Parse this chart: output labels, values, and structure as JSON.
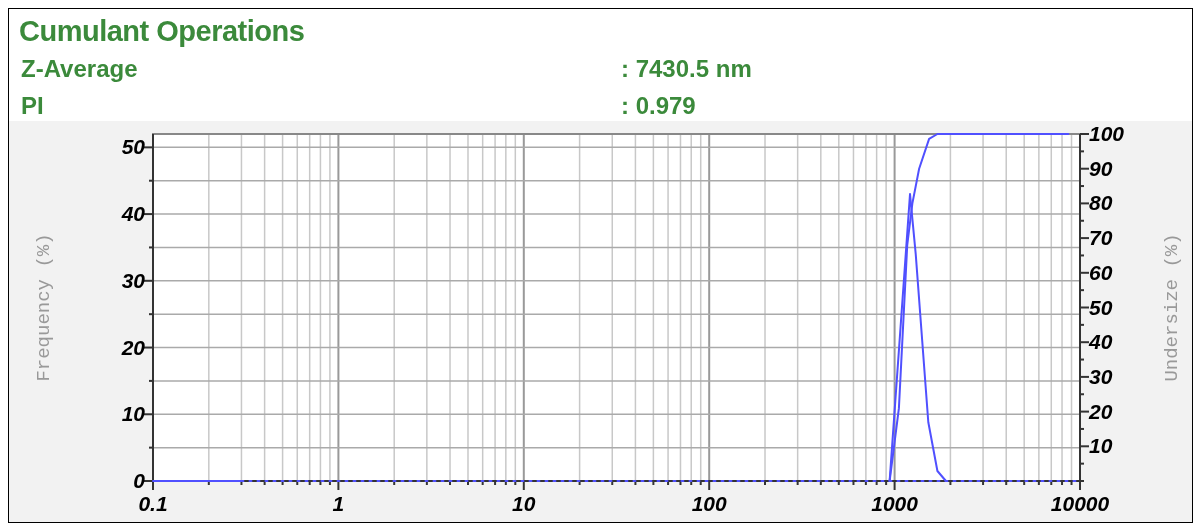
{
  "chart_data": {
    "type": "line",
    "title": "Cumulant Operations",
    "annotations": [
      "Z-Average",
      ": 7430.5 nm",
      "PI",
      ": 0.979"
    ],
    "ylabel": "Frequency (%)",
    "y2label": "Undersize (%)",
    "log": "x",
    "grid": true,
    "marker": "none",
    "xlim": [
      0.1,
      10000
    ],
    "xticks": [
      0.1,
      {
        "value": 0.2,
        "label": null
      },
      {
        "value": 0.3,
        "label": null
      },
      {
        "value": 0.4,
        "label": null
      },
      {
        "value": 0.5,
        "label": null
      },
      {
        "value": 0.6,
        "label": null
      },
      {
        "value": 0.7,
        "label": null
      },
      {
        "value": 0.8,
        "label": null
      },
      {
        "value": 0.9,
        "label": null
      },
      1,
      {
        "value": 2,
        "label": null
      },
      {
        "value": 3,
        "label": null
      },
      {
        "value": 4,
        "label": null
      },
      {
        "value": 5,
        "label": null
      },
      {
        "value": 6,
        "label": null
      },
      {
        "value": 7,
        "label": null
      },
      {
        "value": 8,
        "label": null
      },
      {
        "value": 9,
        "label": null
      },
      10,
      {
        "value": 20,
        "label": null
      },
      {
        "value": 30,
        "label": null
      },
      {
        "value": 40,
        "label": null
      },
      {
        "value": 50,
        "label": null
      },
      {
        "value": 60,
        "label": null
      },
      {
        "value": 70,
        "label": null
      },
      {
        "value": 80,
        "label": null
      },
      {
        "value": 90,
        "label": null
      },
      100,
      {
        "value": 200,
        "label": null
      },
      {
        "value": 300,
        "label": null
      },
      {
        "value": 400,
        "label": null
      },
      {
        "value": 500,
        "label": null
      },
      {
        "value": 600,
        "label": null
      },
      {
        "value": 700,
        "label": null
      },
      {
        "value": 800,
        "label": null
      },
      {
        "value": 900,
        "label": null
      },
      1000,
      {
        "value": 2000,
        "label": null
      },
      {
        "value": 3000,
        "label": null
      },
      {
        "value": 4000,
        "label": null
      },
      {
        "value": 5000,
        "label": null
      },
      {
        "value": 6000,
        "label": null
      },
      {
        "value": 7000,
        "label": null
      },
      {
        "value": 8000,
        "label": null
      },
      {
        "value": 9000,
        "label": null
      },
      10000
    ],
    "ylim": [
      0,
      52
    ],
    "yticks": [
      0,
      {
        "value": 5,
        "label": null
      },
      10,
      {
        "value": 15,
        "label": null
      },
      20,
      {
        "value": 25,
        "label": null
      },
      30,
      {
        "value": 35,
        "label": null
      },
      40,
      {
        "value": 45,
        "label": null
      },
      50
    ],
    "y2lim": [
      0,
      100
    ],
    "y2ticks": [
      {
        "value": 0,
        "label": null
      },
      {
        "value": 5,
        "label": null
      },
      10,
      {
        "value": 15,
        "label": null
      },
      20,
      {
        "value": 25,
        "label": null
      },
      30,
      {
        "value": 35,
        "label": null
      },
      40,
      {
        "value": 45,
        "label": null
      },
      50,
      {
        "value": 55,
        "label": null
      },
      60,
      {
        "value": 65,
        "label": null
      },
      70,
      {
        "value": 75,
        "label": null
      },
      80,
      {
        "value": 85,
        "label": null
      },
      90,
      {
        "value": 95,
        "label": null
      },
      100
    ],
    "series": [
      {
        "color": "#5050ff",
        "line_style": "solid",
        "x": [
          0.1,
          0.3,
          500,
          940,
          1211,
          1300,
          1520,
          1702,
          1892
        ],
        "values": [
          0,
          0,
          null,
          0,
          43,
          34,
          8.8,
          1.5,
          0
        ]
      },
      {
        "color": "#5050ff",
        "line_style": "dotted",
        "axis": "y2",
        "x": [
          0.3,
          10000
        ],
        "values": [
          0,
          0
        ]
      },
      {
        "color": "#5050ff",
        "line_style": "solid",
        "axis": "y2",
        "x": [
          940,
          1055,
          1170,
          1247,
          1356,
          1535,
          1702,
          8650
        ],
        "values": [
          0,
          21,
          68,
          80,
          90,
          98.6,
          100,
          100
        ]
      }
    ]
  }
}
